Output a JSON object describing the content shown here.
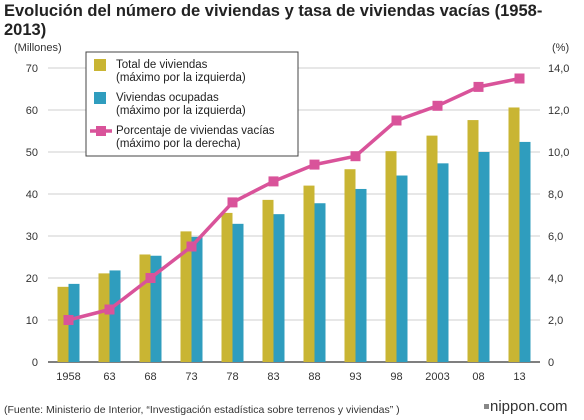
{
  "chart_data": {
    "type": "bar",
    "title": "Evolución del número de viviendas y tasa de viviendas vacías (1958-2013)",
    "y_left_unit": "(Millones)",
    "y_right_unit": "(%)",
    "categories": [
      "1958",
      "63",
      "68",
      "73",
      "78",
      "83",
      "88",
      "93",
      "98",
      "2003",
      "08",
      "13"
    ],
    "ylim_left": [
      0,
      70
    ],
    "yticks_left": [
      "0",
      "10",
      "20",
      "30",
      "40",
      "50",
      "60",
      "70"
    ],
    "ylim_right": [
      0,
      14
    ],
    "yticks_right": [
      "0",
      "2,0",
      "4,0",
      "6,0",
      "8,0",
      "10,0",
      "12,0",
      "14,0"
    ],
    "grid": true,
    "legend_position": "top-left",
    "series": [
      {
        "name": "Total de viviendas",
        "name_line2": "(máximo por la izquierda)",
        "type": "bar",
        "axis": "left",
        "color": "#c9b533",
        "values": [
          17.9,
          21.1,
          25.6,
          31.1,
          35.5,
          38.6,
          42.0,
          45.9,
          50.2,
          53.9,
          57.6,
          60.6
        ]
      },
      {
        "name": "Viviendas ocupadas",
        "name_line2": "(máximo por la izquierda)",
        "type": "bar",
        "axis": "left",
        "color": "#2f9dbe",
        "values": [
          18.6,
          21.8,
          25.3,
          29.8,
          32.9,
          35.2,
          37.8,
          41.2,
          44.4,
          47.3,
          50.0,
          52.4
        ]
      },
      {
        "name": "Porcentaje de viviendas vacías",
        "name_line2": "(máximo por la derecha)",
        "type": "line",
        "axis": "right",
        "color": "#d9539a",
        "values": [
          2.0,
          2.5,
          4.0,
          5.5,
          7.6,
          8.6,
          9.4,
          9.8,
          11.5,
          12.2,
          13.1,
          13.5
        ]
      }
    ]
  },
  "source": "(Fuente: Ministerio de Interior, “Investigación estadística sobre terrenos y viviendas” )",
  "brand": "nippon.com"
}
